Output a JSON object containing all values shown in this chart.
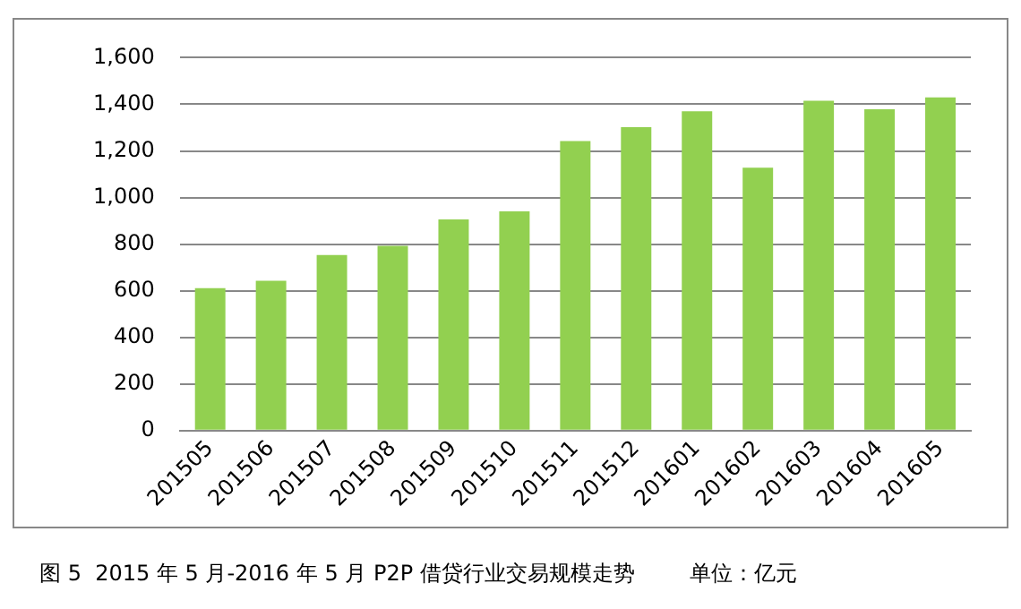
{
  "chart_data": {
    "type": "bar",
    "categories": [
      "201505",
      "201506",
      "201507",
      "201508",
      "201509",
      "201510",
      "201511",
      "201512",
      "201601",
      "201602",
      "201603",
      "201604",
      "201605"
    ],
    "values": [
      611,
      643,
      753,
      793,
      906,
      941,
      1242,
      1302,
      1370,
      1128,
      1415,
      1379,
      1430
    ],
    "color": "#92d050",
    "ylim": [
      0,
      1600
    ],
    "yticks": [
      {
        "value": 0,
        "label": "0"
      },
      {
        "value": 200,
        "label": "200"
      },
      {
        "value": 400,
        "label": "400"
      },
      {
        "value": 600,
        "label": "600"
      },
      {
        "value": 800,
        "label": "800"
      },
      {
        "value": 1000,
        "label": "1,000"
      },
      {
        "value": 1200,
        "label": "1,200"
      },
      {
        "value": 1400,
        "label": "1,400"
      },
      {
        "value": 1600,
        "label": "1,600"
      }
    ],
    "grid": "y",
    "annotations": [
      "图 5  2015 年 5 月-2016 年 5 月 P2P 借贷行业交易规模走势        单位：亿元"
    ]
  }
}
